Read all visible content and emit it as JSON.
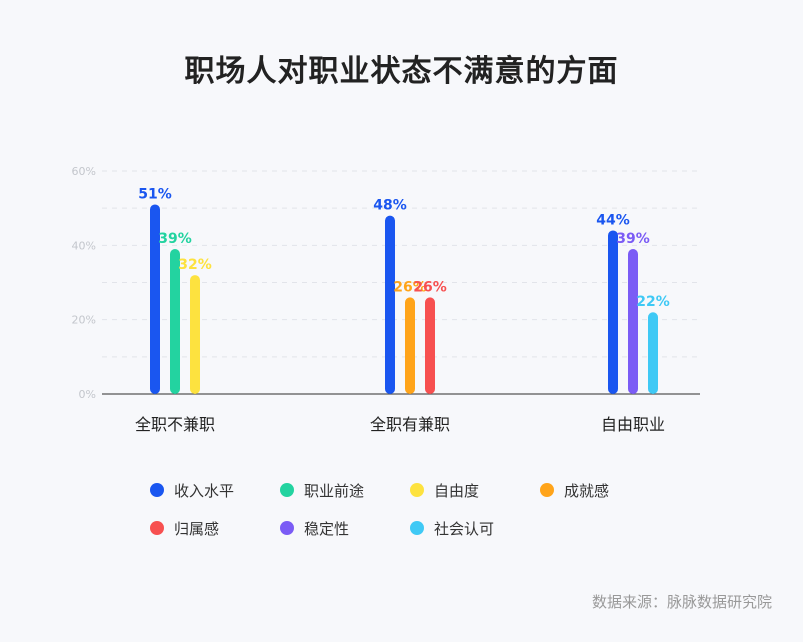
{
  "title": "职场人对职业状态不满意的方面",
  "source": "数据来源：脉脉数据研究院",
  "chart_data": {
    "type": "bar",
    "categories": [
      "全职不兼职",
      "全职有兼职",
      "自由职业"
    ],
    "yticks": [
      "0%",
      "20%",
      "40%",
      "60%"
    ],
    "ylim": [
      0,
      60
    ],
    "grid": true,
    "series": [
      {
        "name": "收入水平",
        "color": "#1a56f0",
        "values": [
          51,
          48,
          44
        ]
      },
      {
        "name": "职业前途",
        "color": "#23d3a0",
        "values": [
          39,
          null,
          null
        ]
      },
      {
        "name": "自由度",
        "color": "#fde23f",
        "values": [
          32,
          null,
          null
        ]
      },
      {
        "name": "成就感",
        "color": "#ffa41a",
        "values": [
          null,
          26,
          null
        ]
      },
      {
        "name": "归属感",
        "color": "#f75050",
        "values": [
          null,
          26,
          null
        ]
      },
      {
        "name": "稳定性",
        "color": "#7b5cf5",
        "values": [
          null,
          null,
          39
        ]
      },
      {
        "name": "社会认可",
        "color": "#3fc9f5",
        "values": [
          null,
          null,
          22
        ]
      }
    ],
    "legend_position": "bottom"
  }
}
